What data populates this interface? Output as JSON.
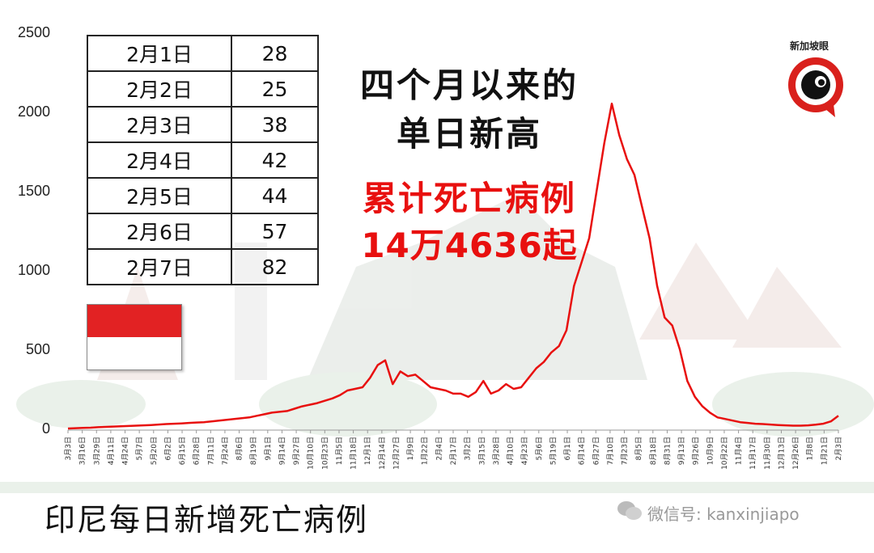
{
  "headline": {
    "line1": "四个月以来的",
    "line2": "单日新高",
    "line3": "累计死亡病例",
    "line4": "14万4636起"
  },
  "caption": "印尼每日新增死亡病例",
  "logo_text": "新加坡眼",
  "watermark": "微信号: kanxinjiapo",
  "colors": {
    "series": "#e8100f",
    "headline_red": "#e8100f",
    "flag_red": "#e22223",
    "logo_red": "#d9201c"
  },
  "table": {
    "rows": [
      {
        "date": "2月1日",
        "value": "28"
      },
      {
        "date": "2月2日",
        "value": "25"
      },
      {
        "date": "2月3日",
        "value": "38"
      },
      {
        "date": "2月4日",
        "value": "42"
      },
      {
        "date": "2月5日",
        "value": "44"
      },
      {
        "date": "2月6日",
        "value": "57"
      },
      {
        "date": "2月7日",
        "value": "82"
      }
    ]
  },
  "chart_data": {
    "type": "line",
    "title": "",
    "xlabel": "",
    "ylabel": "",
    "ylim": [
      0,
      2500
    ],
    "yticks": [
      0,
      500,
      1000,
      1500,
      2000,
      2500
    ],
    "grid": false,
    "x_tick_labels": [
      "3月3日",
      "3月16日",
      "3月29日",
      "4月11日",
      "4月24日",
      "5月7日",
      "5月20日",
      "6月2日",
      "6月15日",
      "6月28日",
      "7月11日",
      "7月24日",
      "8月6日",
      "8月19日",
      "9月1日",
      "9月14日",
      "9月27日",
      "10月10日",
      "10月23日",
      "11月5日",
      "11月18日",
      "12月1日",
      "12月14日",
      "12月27日",
      "1月9日",
      "1月22日",
      "2月4日",
      "2月17日",
      "3月2日",
      "3月15日",
      "3月28日",
      "4月10日",
      "4月23日",
      "5月6日",
      "5月19日",
      "6月1日",
      "6月14日",
      "6月27日",
      "7月10日",
      "7月23日",
      "8月5日",
      "8月18日",
      "8月31日",
      "9月13日",
      "9月26日",
      "10月9日",
      "10月22日",
      "11月4日",
      "11月17日",
      "11月30日",
      "12月13日",
      "12月26日",
      "1月8日",
      "1月21日",
      "2月3日"
    ],
    "series": [
      {
        "values": [
          0,
          2,
          4,
          5,
          8,
          10,
          12,
          14,
          16,
          18,
          20,
          22,
          25,
          28,
          30,
          32,
          35,
          38,
          40,
          45,
          50,
          55,
          60,
          65,
          70,
          80,
          90,
          100,
          105,
          110,
          125,
          140,
          150,
          160,
          175,
          190,
          210,
          240,
          250,
          260,
          320,
          400,
          430,
          280,
          360,
          330,
          340,
          300,
          260,
          250,
          240,
          220,
          220,
          200,
          230,
          300,
          220,
          240,
          280,
          250,
          260,
          320,
          380,
          420,
          480,
          520,
          620,
          900,
          1050,
          1200,
          1500,
          1800,
          2050,
          1850,
          1700,
          1600,
          1400,
          1200,
          900,
          700,
          650,
          500,
          300,
          200,
          140,
          100,
          70,
          60,
          50,
          40,
          35,
          30,
          28,
          25,
          22,
          20,
          18,
          18,
          20,
          24,
          30,
          45,
          80
        ]
      }
    ]
  }
}
